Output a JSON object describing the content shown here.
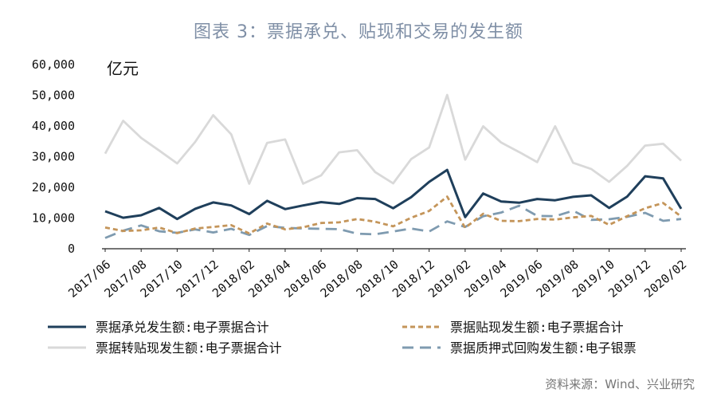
{
  "title": "图表 3：票据承兑、贴现和交易的发生额",
  "source": "资料来源：Wind、兴业研究",
  "chart_data": {
    "type": "line",
    "unit_label": "亿元",
    "ylim": [
      0,
      60000
    ],
    "y_ticks": [
      "0",
      "10,000",
      "20,000",
      "30,000",
      "40,000",
      "50,000",
      "60,000"
    ],
    "y_tick_values": [
      0,
      10000,
      20000,
      30000,
      40000,
      50000,
      60000
    ],
    "x": [
      "2017/06",
      "2017/07",
      "2017/08",
      "2017/09",
      "2017/10",
      "2017/11",
      "2017/12",
      "2018/01",
      "2018/02",
      "2018/03",
      "2018/04",
      "2018/05",
      "2018/06",
      "2018/07",
      "2018/08",
      "2018/09",
      "2018/10",
      "2018/11",
      "2018/12",
      "2019/01",
      "2019/02",
      "2019/03",
      "2019/04",
      "2019/05",
      "2019/06",
      "2019/07",
      "2019/08",
      "2019/09",
      "2019/10",
      "2019/11",
      "2019/12",
      "2020/01",
      "2020/02"
    ],
    "x_tick_labels": [
      "2017/06",
      "2017/08",
      "2017/10",
      "2017/12",
      "2018/02",
      "2018/04",
      "2018/06",
      "2018/08",
      "2018/10",
      "2018/12",
      "2019/02",
      "2019/04",
      "2019/06",
      "2019/08",
      "2019/10",
      "2019/12",
      "2020/02"
    ],
    "series": [
      {
        "name": "票据承兑发生额:电子票据合计",
        "color": "#1f3f5b",
        "dash": "solid",
        "values": [
          12200,
          10100,
          10900,
          13300,
          9700,
          13000,
          15100,
          14100,
          11300,
          15600,
          12900,
          14100,
          15200,
          14600,
          16500,
          16200,
          13200,
          16800,
          21800,
          25700,
          10300,
          18000,
          15400,
          15000,
          16200,
          15800,
          16900,
          17400,
          13300,
          17000,
          23600,
          22900,
          13000
        ]
      },
      {
        "name": "票据贴现发生额:电子票据合计",
        "color": "#c4955a",
        "dash": "short",
        "values": [
          6900,
          5800,
          6000,
          6900,
          5100,
          6600,
          7100,
          7700,
          5000,
          8200,
          6300,
          7000,
          8400,
          8600,
          9700,
          8800,
          7300,
          10100,
          12300,
          17000,
          6800,
          11400,
          9100,
          9000,
          9700,
          9500,
          10200,
          10700,
          7800,
          10600,
          13200,
          14900,
          10500
        ]
      },
      {
        "name": "票据转贴现发生额:电子票据合计",
        "color": "#d9d9d9",
        "dash": "solid",
        "values": [
          31000,
          41700,
          36100,
          32000,
          27800,
          34800,
          43500,
          37300,
          21200,
          34500,
          35600,
          21200,
          23900,
          31400,
          32100,
          25000,
          21300,
          29200,
          33000,
          50100,
          29000,
          39900,
          34600,
          31500,
          28200,
          39900,
          28000,
          26000,
          21800,
          27000,
          33600,
          34200,
          28700
        ]
      },
      {
        "name": "票据质押式回购发生额:电子银票",
        "color": "#7f9bb0",
        "dash": "long",
        "values": [
          3500,
          5900,
          7600,
          5700,
          5200,
          6300,
          5300,
          6500,
          4500,
          7400,
          6800,
          6600,
          6500,
          6400,
          4900,
          4700,
          5600,
          6600,
          5600,
          8900,
          7100,
          10600,
          11800,
          14000,
          10700,
          10600,
          12400,
          9400,
          9600,
          10400,
          11700,
          9100,
          9700
        ]
      }
    ]
  }
}
